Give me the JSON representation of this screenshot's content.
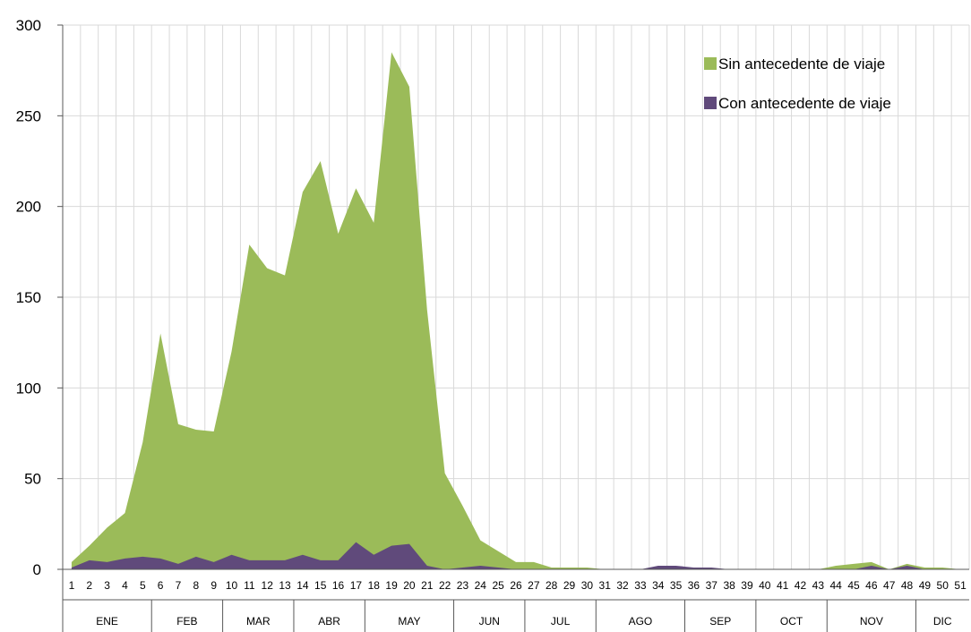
{
  "chart_data": {
    "type": "area",
    "x": [
      "1",
      "2",
      "3",
      "4",
      "5",
      "6",
      "7",
      "8",
      "9",
      "10",
      "11",
      "12",
      "13",
      "14",
      "15",
      "16",
      "17",
      "18",
      "19",
      "20",
      "21",
      "22",
      "23",
      "24",
      "25",
      "26",
      "27",
      "28",
      "29",
      "30",
      "31",
      "32",
      "33",
      "34",
      "35",
      "36",
      "37",
      "38",
      "39",
      "40",
      "41",
      "42",
      "43",
      "44",
      "45",
      "46",
      "47",
      "48",
      "49",
      "50",
      "51"
    ],
    "months": [
      {
        "label": "ENE",
        "start": 1,
        "end": 5
      },
      {
        "label": "FEB",
        "start": 6,
        "end": 9
      },
      {
        "label": "MAR",
        "start": 10,
        "end": 13
      },
      {
        "label": "ABR",
        "start": 14,
        "end": 17
      },
      {
        "label": "MAY",
        "start": 18,
        "end": 22
      },
      {
        "label": "JUN",
        "start": 23,
        "end": 26
      },
      {
        "label": "JUL",
        "start": 27,
        "end": 30
      },
      {
        "label": "AGO",
        "start": 31,
        "end": 35
      },
      {
        "label": "SEP",
        "start": 36,
        "end": 39
      },
      {
        "label": "OCT",
        "start": 40,
        "end": 43
      },
      {
        "label": "NOV",
        "start": 44,
        "end": 48
      },
      {
        "label": "DIC",
        "start": 49,
        "end": 51
      }
    ],
    "series": [
      {
        "name": "Sin antecedente de viaje",
        "color": "#9BBB59",
        "values": [
          4,
          13,
          23,
          31,
          70,
          130,
          80,
          77,
          76,
          120,
          179,
          166,
          162,
          208,
          225,
          185,
          210,
          191,
          285,
          266,
          143,
          53,
          35,
          16,
          10,
          4,
          4,
          1,
          1,
          1,
          0,
          0,
          0,
          0,
          0,
          0,
          0,
          0,
          0,
          0,
          0,
          0,
          0,
          2,
          3,
          4,
          0,
          3,
          1,
          1,
          0
        ]
      },
      {
        "name": "Con antecedente de viaje",
        "color": "#604A7B",
        "values": [
          1,
          5,
          4,
          6,
          7,
          6,
          3,
          7,
          4,
          8,
          5,
          5,
          5,
          8,
          5,
          5,
          15,
          8,
          13,
          14,
          2,
          0,
          1,
          2,
          1,
          0,
          0,
          0,
          0,
          0,
          0,
          0,
          0,
          2,
          2,
          1,
          1,
          0,
          0,
          0,
          0,
          0,
          0,
          0,
          0,
          2,
          0,
          2,
          0,
          0,
          0
        ]
      }
    ],
    "yticks": [
      "0",
      "50",
      "100",
      "150",
      "200",
      "250",
      "300"
    ],
    "ylim": [
      0,
      300
    ],
    "grid": "vertical",
    "legend_position": "top-right",
    "title": "",
    "xlabel": "",
    "ylabel": ""
  }
}
